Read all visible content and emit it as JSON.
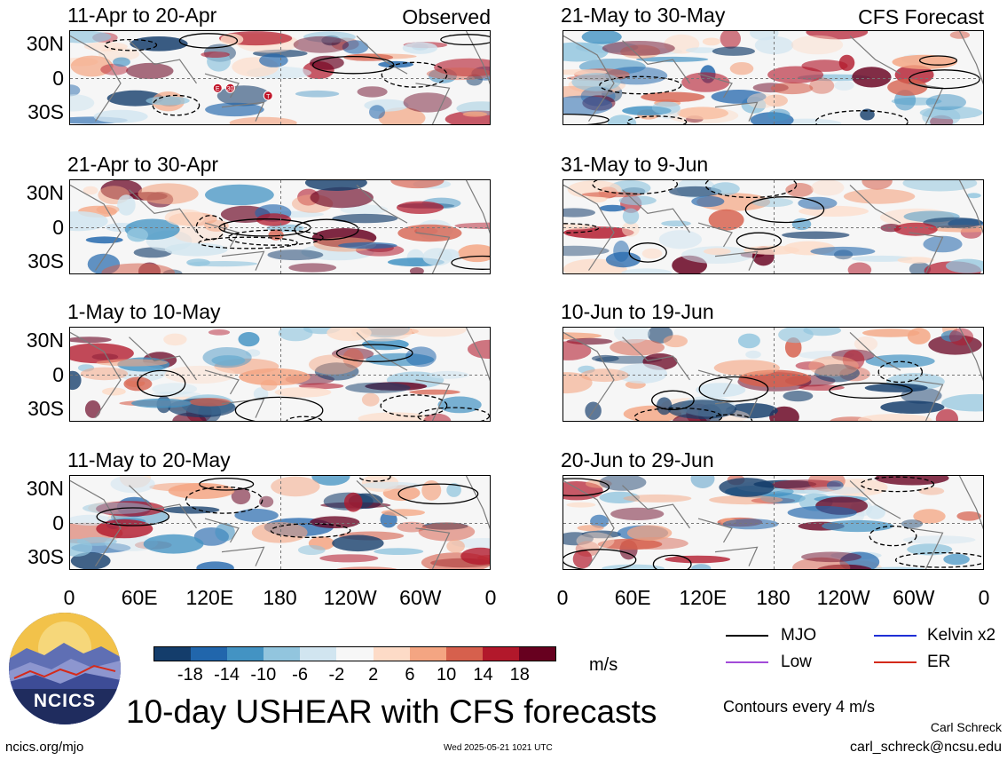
{
  "figure_title": "10-day USHEAR with CFS forecasts",
  "observed_label": "Observed",
  "forecast_label": "CFS Forecast",
  "units": "m/s",
  "contour_note": "Contours every 4 m/s",
  "author": "Carl Schreck",
  "email": "carl_schreck@ncsu.edu",
  "website": "ncics.org/mjo",
  "timestamp": "Wed 2025-05-21 1021 UTC",
  "logo_text": "NCICS",
  "legend": [
    {
      "label": "MJO",
      "color": "#000000"
    },
    {
      "label": "Kelvin x2",
      "color": "#1f2fd6"
    },
    {
      "label": "Low",
      "color": "#a24bd8"
    },
    {
      "label": "ER",
      "color": "#d42a1a"
    }
  ],
  "colorbar": {
    "colors": [
      "#143d6b",
      "#2166ac",
      "#4393c3",
      "#92c5de",
      "#d1e5f0",
      "#f7f7f7",
      "#fddbc7",
      "#f4a582",
      "#d6604d",
      "#b2182b",
      "#67001f"
    ],
    "tick_labels": [
      "-18",
      "-14",
      "-10",
      "-6",
      "-2",
      "2",
      "6",
      "10",
      "14",
      "18"
    ]
  },
  "chart_data": [
    {
      "type": "heatmap",
      "column": "observed",
      "title": "11-Apr to 20-Apr",
      "annotation": "Observed",
      "yticks": [
        "30N",
        "0",
        "30S"
      ],
      "xticks": [
        "0",
        "60E",
        "120E",
        "180",
        "120W",
        "60W",
        "0"
      ],
      "cyclone_markers": [
        "E",
        "30",
        "T"
      ]
    },
    {
      "type": "heatmap",
      "column": "observed",
      "title": "21-Apr to 30-Apr",
      "yticks": [
        "30N",
        "0",
        "30S"
      ],
      "xticks": [
        "0",
        "60E",
        "120E",
        "180",
        "120W",
        "60W",
        "0"
      ]
    },
    {
      "type": "heatmap",
      "column": "observed",
      "title": "1-May to 10-May",
      "yticks": [
        "30N",
        "0",
        "30S"
      ],
      "xticks": [
        "0",
        "60E",
        "120E",
        "180",
        "120W",
        "60W",
        "0"
      ]
    },
    {
      "type": "heatmap",
      "column": "observed",
      "title": "11-May to 20-May",
      "yticks": [
        "30N",
        "0",
        "30S"
      ],
      "xticks": [
        "0",
        "60E",
        "120E",
        "180",
        "120W",
        "60W",
        "0"
      ]
    },
    {
      "type": "heatmap",
      "column": "forecast",
      "title": "21-May to 30-May",
      "annotation": "CFS Forecast",
      "yticks": [
        "30N",
        "0",
        "30S"
      ],
      "xticks": [
        "0",
        "60E",
        "120E",
        "180",
        "120W",
        "60W",
        "0"
      ]
    },
    {
      "type": "heatmap",
      "column": "forecast",
      "title": "31-May to 9-Jun",
      "yticks": [
        "30N",
        "0",
        "30S"
      ],
      "xticks": [
        "0",
        "60E",
        "120E",
        "180",
        "120W",
        "60W",
        "0"
      ]
    },
    {
      "type": "heatmap",
      "column": "forecast",
      "title": "10-Jun to 19-Jun",
      "yticks": [
        "30N",
        "0",
        "30S"
      ],
      "xticks": [
        "0",
        "60E",
        "120E",
        "180",
        "120W",
        "60W",
        "0"
      ]
    },
    {
      "type": "heatmap",
      "column": "forecast",
      "title": "20-Jun to 29-Jun",
      "yticks": [
        "30N",
        "0",
        "30S"
      ],
      "xticks": [
        "0",
        "60E",
        "120E",
        "180",
        "120W",
        "60W",
        "0"
      ]
    }
  ]
}
